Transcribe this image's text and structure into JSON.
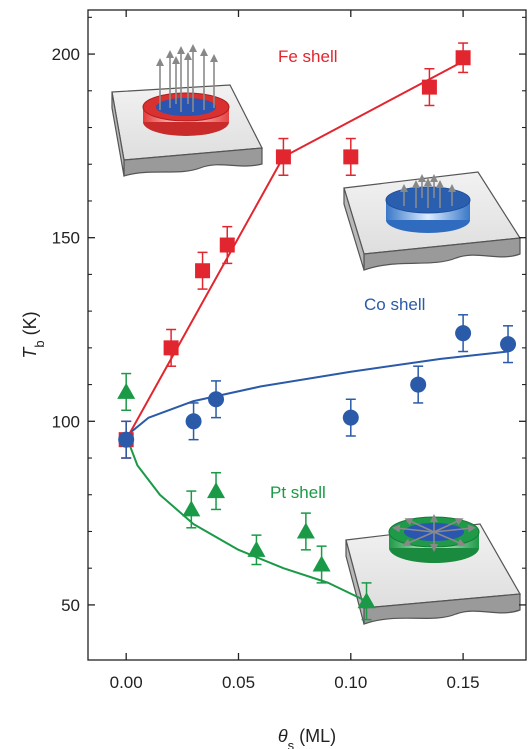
{
  "chart_data": {
    "type": "scatter",
    "xlabel": {
      "symbol": "θ",
      "sub": "s",
      "unit": " (ML)"
    },
    "ylabel": {
      "symbol": "T",
      "sub": "b",
      "unit": " (K)"
    },
    "xlim": [
      -0.017,
      0.178
    ],
    "ylim": [
      35,
      212
    ],
    "x_ticks": [
      0.0,
      0.05,
      0.1,
      0.15
    ],
    "x_tick_labels": [
      "0.00",
      "0.05",
      "0.10",
      "0.15"
    ],
    "y_ticks": [
      50,
      100,
      150,
      200
    ],
    "y_tick_labels": [
      "50",
      "100",
      "150",
      "200"
    ],
    "grid": false,
    "series": [
      {
        "name": "Fe shell",
        "color": "#e2262f",
        "marker": "square",
        "points": [
          {
            "x": 0.0,
            "y": 95,
            "err": 5
          },
          {
            "x": 0.02,
            "y": 120,
            "err": 5
          },
          {
            "x": 0.034,
            "y": 141,
            "err": 5
          },
          {
            "x": 0.045,
            "y": 148,
            "err": 5
          },
          {
            "x": 0.07,
            "y": 172,
            "err": 5
          },
          {
            "x": 0.1,
            "y": 172,
            "err": 5
          },
          {
            "x": 0.135,
            "y": 191,
            "err": 5
          },
          {
            "x": 0.15,
            "y": 199,
            "err": 4
          }
        ],
        "fit": [
          [
            0.0,
            95
          ],
          [
            0.07,
            172
          ],
          [
            0.15,
            198
          ]
        ]
      },
      {
        "name": "Co shell",
        "color": "#2a5aa8",
        "marker": "circle",
        "points": [
          {
            "x": 0.0,
            "y": 95,
            "err": 5
          },
          {
            "x": 0.03,
            "y": 100,
            "err": 5
          },
          {
            "x": 0.04,
            "y": 106,
            "err": 5
          },
          {
            "x": 0.1,
            "y": 101,
            "err": 5
          },
          {
            "x": 0.13,
            "y": 110,
            "err": 5
          },
          {
            "x": 0.15,
            "y": 124,
            "err": 5
          },
          {
            "x": 0.17,
            "y": 121,
            "err": 5
          }
        ],
        "fit": [
          [
            0.0,
            96
          ],
          [
            0.01,
            101
          ],
          [
            0.03,
            105.5
          ],
          [
            0.06,
            109.5
          ],
          [
            0.1,
            113.5
          ],
          [
            0.14,
            117
          ],
          [
            0.17,
            119
          ]
        ]
      },
      {
        "name": "Pt shell",
        "color": "#1a9a46",
        "marker": "triangle",
        "points": [
          {
            "x": 0.0,
            "y": 108,
            "err": 5
          },
          {
            "x": 0.029,
            "y": 76,
            "err": 5
          },
          {
            "x": 0.04,
            "y": 81,
            "err": 5
          },
          {
            "x": 0.058,
            "y": 65,
            "err": 4
          },
          {
            "x": 0.08,
            "y": 70,
            "err": 5
          },
          {
            "x": 0.087,
            "y": 61,
            "err": 5
          },
          {
            "x": 0.107,
            "y": 51,
            "err": 5
          }
        ],
        "fit": [
          [
            0.0,
            96
          ],
          [
            0.005,
            88
          ],
          [
            0.015,
            80
          ],
          [
            0.03,
            72
          ],
          [
            0.05,
            65
          ],
          [
            0.07,
            60
          ],
          [
            0.09,
            56
          ],
          [
            0.107,
            51
          ]
        ]
      }
    ]
  }
}
